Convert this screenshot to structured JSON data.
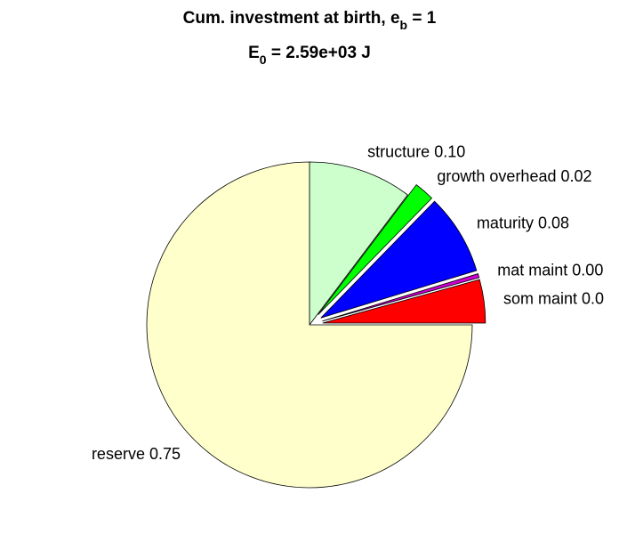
{
  "chart_data": {
    "type": "pie",
    "title": [
      "Cum. investment at birth, e",
      "b",
      " = 1"
    ],
    "subtitle": [
      "E",
      "0",
      " = 2.59e+03 J"
    ],
    "categories": [
      "structure",
      "growth overhead",
      "maturity",
      "mat maint",
      "som maint",
      "reserve"
    ],
    "values": [
      0.103,
      0.02,
      0.08,
      0.004,
      0.043,
      0.75
    ],
    "value_labels": [
      "0.10",
      "0.02",
      "0.08",
      "0.00",
      "0.0",
      "0.75"
    ],
    "colors": [
      "#ccffcc",
      "#00ff00",
      "#0000ff",
      "#cc00cc",
      "#ff0000",
      "#ffffcc"
    ],
    "explode": [
      false,
      true,
      true,
      true,
      true,
      false
    ]
  }
}
